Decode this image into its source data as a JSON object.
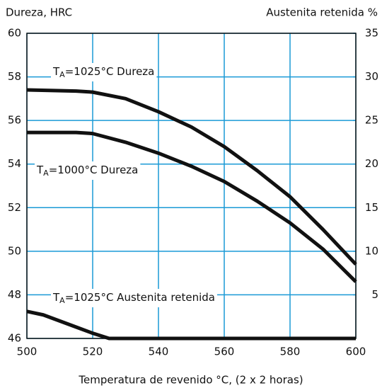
{
  "chart_data": {
    "type": "line",
    "ylabel": "Dureza, HRC",
    "y2label": "Austenita retenida %",
    "xlabel": "Temperatura de revenido °C, (2 x 2 horas)",
    "xlim": [
      500,
      600
    ],
    "xticks": [
      500,
      520,
      540,
      560,
      580,
      600
    ],
    "ylim": [
      46,
      60
    ],
    "yticks": [
      46,
      48,
      50,
      52,
      54,
      56,
      58,
      60
    ],
    "y2lim": [
      0,
      35
    ],
    "y2ticks": [
      5,
      10,
      15,
      20,
      25,
      30,
      35
    ],
    "grid": true,
    "grid_color": "#1a9ad6",
    "series": [
      {
        "name": "TA=1025°C Dureza",
        "color": "#111111",
        "x": [
          500,
          515,
          520,
          530,
          540,
          550,
          560,
          570,
          580,
          590,
          600
        ],
        "values": [
          57.4,
          57.35,
          57.3,
          57.0,
          56.4,
          55.7,
          54.8,
          53.7,
          52.5,
          51.0,
          49.4
        ]
      },
      {
        "name": "TA=1000°C Dureza",
        "color": "#111111",
        "x": [
          500,
          515,
          520,
          530,
          540,
          550,
          560,
          570,
          580,
          590,
          600
        ],
        "values": [
          55.45,
          55.45,
          55.4,
          55.0,
          54.5,
          53.9,
          53.2,
          52.3,
          51.3,
          50.1,
          48.6
        ]
      },
      {
        "name": "TA=1025°C Austenita retenida",
        "color": "#111111",
        "axis": "y2",
        "x": [
          500,
          505,
          510,
          515,
          520,
          525,
          540,
          560,
          580,
          600
        ],
        "values": [
          3.1,
          2.7,
          2.0,
          1.3,
          0.6,
          0,
          0,
          0,
          0,
          0
        ]
      }
    ]
  }
}
